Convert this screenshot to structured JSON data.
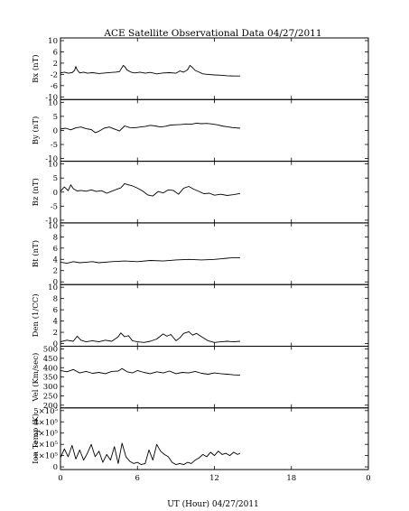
{
  "chart_data": {
    "type": "line",
    "title": "ACE Satellite Observational Data   04/27/2011",
    "xlabel": "UT (Hour)   04/27/2011",
    "xlim": [
      0,
      24
    ],
    "x_ticks": [
      "0",
      "6",
      "12",
      "18",
      "0"
    ],
    "grid": false,
    "data_end_hour": 14,
    "panels": [
      {
        "id": "bx",
        "ylabel": "Bx (nT)",
        "ylim": [
          -10,
          10
        ],
        "y_ticks": [
          "10",
          "6",
          "2",
          "-2",
          "-6",
          "-10"
        ],
        "y_tick_values": [
          10,
          6,
          2,
          -2,
          -6,
          -10
        ],
        "series": [
          {
            "x": [
              0.0,
              0.3,
              0.6,
              0.9,
              1.1,
              1.2,
              1.3,
              1.5,
              1.8,
              2.1,
              2.5,
              3.0,
              3.5,
              4.0,
              4.3,
              4.6,
              4.8,
              4.9,
              5.0,
              5.2,
              5.5,
              5.8,
              6.2,
              6.6,
              7.0,
              7.5,
              8.0,
              8.5,
              9.0,
              9.3,
              9.6,
              9.9,
              10.1,
              10.3,
              10.5,
              10.8,
              11.1,
              11.5,
              12.0,
              12.5,
              13.0,
              13.5,
              14.0
            ],
            "y": [
              -1.5,
              -1.2,
              -1.6,
              -1.4,
              -0.6,
              0.8,
              -0.4,
              -1.5,
              -1.2,
              -1.6,
              -1.4,
              -1.7,
              -1.5,
              -1.3,
              -1.2,
              -1.0,
              0.5,
              1.2,
              0.8,
              -0.5,
              -1.2,
              -1.5,
              -1.2,
              -1.6,
              -1.3,
              -1.8,
              -1.5,
              -1.4,
              -1.6,
              -0.8,
              -1.2,
              -0.4,
              1.2,
              0.4,
              -0.6,
              -1.2,
              -1.8,
              -2.0,
              -2.2,
              -2.3,
              -2.5,
              -2.6,
              -2.6
            ]
          }
        ]
      },
      {
        "id": "by",
        "ylabel": "By (nT)",
        "ylim": [
          -10,
          10
        ],
        "y_ticks": [
          "10",
          "5",
          "0",
          "-5",
          "-10"
        ],
        "y_tick_values": [
          10,
          5,
          0,
          -5,
          -10
        ],
        "series": [
          {
            "x": [
              0.0,
              0.4,
              0.8,
              1.2,
              1.6,
              2.0,
              2.4,
              2.7,
              3.0,
              3.4,
              3.8,
              4.2,
              4.6,
              5.0,
              5.4,
              5.8,
              6.2,
              6.6,
              7.0,
              7.4,
              7.8,
              8.2,
              8.6,
              9.0,
              9.4,
              9.8,
              10.2,
              10.6,
              11.0,
              11.4,
              11.8,
              12.2,
              12.6,
              13.0,
              13.4,
              14.0
            ],
            "y": [
              0.5,
              0.8,
              0.2,
              0.9,
              1.2,
              0.6,
              0.3,
              -0.8,
              -0.3,
              0.8,
              1.2,
              0.5,
              -0.2,
              1.6,
              1.0,
              0.9,
              1.2,
              1.4,
              1.8,
              1.6,
              1.2,
              1.5,
              1.9,
              2.0,
              2.1,
              2.3,
              2.2,
              2.6,
              2.4,
              2.5,
              2.3,
              2.0,
              1.6,
              1.3,
              1.0,
              0.8
            ]
          }
        ]
      },
      {
        "id": "bz",
        "ylabel": "Bz (nT)",
        "ylim": [
          -10,
          10
        ],
        "y_ticks": [
          "10",
          "5",
          "0",
          "-5",
          "-10"
        ],
        "y_tick_values": [
          10,
          5,
          0,
          -5,
          -10
        ],
        "series": [
          {
            "x": [
              0.0,
              0.3,
              0.6,
              0.8,
              1.0,
              1.3,
              1.6,
              2.0,
              2.4,
              2.8,
              3.2,
              3.6,
              4.0,
              4.4,
              4.7,
              5.0,
              5.3,
              5.6,
              6.0,
              6.4,
              6.8,
              7.2,
              7.6,
              8.0,
              8.4,
              8.8,
              9.2,
              9.6,
              10.0,
              10.4,
              10.8,
              11.2,
              11.6,
              12.0,
              12.5,
              13.0,
              13.5,
              14.0
            ],
            "y": [
              0.3,
              1.8,
              0.5,
              2.6,
              1.2,
              0.4,
              0.6,
              0.3,
              0.8,
              0.2,
              0.5,
              -0.4,
              0.3,
              1.0,
              1.5,
              3.0,
              2.6,
              2.2,
              1.4,
              0.4,
              -1.0,
              -1.4,
              0.2,
              -0.3,
              0.8,
              0.6,
              -0.8,
              1.4,
              2.0,
              1.0,
              0.2,
              -0.6,
              -0.4,
              -1.1,
              -0.8,
              -1.2,
              -0.9,
              -0.5
            ]
          }
        ]
      },
      {
        "id": "bt",
        "ylabel": "Bt (nT)",
        "ylim": [
          0,
          10
        ],
        "y_ticks": [
          "10",
          "8",
          "6",
          "4",
          "2",
          "0"
        ],
        "y_tick_values": [
          10,
          8,
          6,
          4,
          2,
          0
        ],
        "series": [
          {
            "x": [
              0.0,
              0.5,
              1.0,
              1.5,
              2.0,
              2.5,
              3.0,
              4.0,
              5.0,
              6.0,
              7.0,
              8.0,
              9.0,
              10.0,
              11.0,
              12.0,
              12.5,
              13.0,
              13.5,
              14.0
            ],
            "y": [
              3.5,
              3.3,
              3.6,
              3.4,
              3.5,
              3.6,
              3.4,
              3.6,
              3.7,
              3.6,
              3.8,
              3.7,
              3.9,
              4.0,
              3.9,
              4.0,
              4.1,
              4.2,
              4.3,
              4.3
            ]
          }
        ]
      },
      {
        "id": "den",
        "ylabel": "Den (1/CC)",
        "ylim": [
          0,
          10
        ],
        "y_ticks": [
          "10",
          "8",
          "6",
          "4",
          "2",
          "0"
        ],
        "y_tick_values": [
          10,
          8,
          6,
          4,
          2,
          0
        ],
        "series": [
          {
            "x": [
              0.0,
              0.5,
              1.0,
              1.3,
              1.6,
              2.0,
              2.5,
              3.0,
              3.5,
              4.0,
              4.5,
              4.7,
              5.0,
              5.3,
              5.6,
              6.0,
              6.5,
              7.0,
              7.5,
              8.0,
              8.3,
              8.6,
              9.0,
              9.3,
              9.6,
              10.0,
              10.3,
              10.6,
              11.0,
              11.5,
              12.0,
              12.5,
              13.0,
              13.5,
              14.0
            ],
            "y": [
              0.3,
              0.6,
              0.4,
              1.3,
              0.6,
              0.3,
              0.5,
              0.3,
              0.6,
              0.4,
              1.2,
              1.9,
              1.2,
              1.4,
              0.5,
              0.3,
              0.2,
              0.4,
              0.8,
              1.7,
              1.3,
              1.6,
              0.5,
              1.0,
              1.8,
              2.1,
              1.5,
              1.8,
              1.2,
              0.5,
              0.2,
              0.3,
              0.4,
              0.3,
              0.4
            ]
          }
        ]
      },
      {
        "id": "vel",
        "ylabel": "Vel (Km/sec)",
        "ylim": [
          200,
          500
        ],
        "y_ticks": [
          "500",
          "450",
          "400",
          "350",
          "300",
          "250",
          "200"
        ],
        "y_tick_values": [
          500,
          450,
          400,
          350,
          300,
          250,
          200
        ],
        "series": [
          {
            "x": [
              0.0,
              0.5,
              1.0,
              1.5,
              2.0,
              2.5,
              3.0,
              3.5,
              4.0,
              4.5,
              4.8,
              5.2,
              5.6,
              6.0,
              6.5,
              7.0,
              7.5,
              8.0,
              8.5,
              9.0,
              9.5,
              10.0,
              10.5,
              11.0,
              11.5,
              12.0,
              12.5,
              13.0,
              13.5,
              14.0
            ],
            "y": [
              385,
              378,
              390,
              372,
              380,
              370,
              375,
              368,
              380,
              382,
              395,
              378,
              372,
              385,
              375,
              368,
              378,
              372,
              382,
              368,
              375,
              372,
              380,
              370,
              365,
              372,
              368,
              365,
              362,
              360
            ]
          }
        ]
      },
      {
        "id": "temp",
        "ylabel": "Ion Temp (K)",
        "ylim": [
          0,
          500000
        ],
        "y_ticks": [
          "5×10⁵",
          "4×10⁵",
          "3×10⁵",
          "2×10⁵",
          "1×10⁵",
          "0"
        ],
        "y_tick_values": [
          500000,
          400000,
          300000,
          200000,
          100000,
          0
        ],
        "series": [
          {
            "x": [
              0.0,
              0.3,
              0.6,
              0.9,
              1.2,
              1.5,
              1.8,
              2.1,
              2.4,
              2.7,
              3.0,
              3.3,
              3.6,
              3.9,
              4.2,
              4.5,
              4.8,
              5.1,
              5.4,
              5.7,
              6.0,
              6.3,
              6.6,
              6.9,
              7.2,
              7.5,
              7.8,
              8.1,
              8.4,
              8.7,
              9.0,
              9.3,
              9.6,
              9.9,
              10.2,
              10.5,
              10.8,
              11.1,
              11.4,
              11.7,
              12.0,
              12.3,
              12.6,
              12.9,
              13.2,
              13.5,
              13.8,
              14.0
            ],
            "y": [
              80000,
              160000,
              90000,
              190000,
              70000,
              150000,
              60000,
              120000,
              200000,
              90000,
              140000,
              40000,
              110000,
              60000,
              180000,
              30000,
              210000,
              90000,
              50000,
              30000,
              40000,
              20000,
              30000,
              150000,
              60000,
              200000,
              140000,
              110000,
              90000,
              40000,
              20000,
              30000,
              20000,
              40000,
              30000,
              60000,
              80000,
              110000,
              90000,
              130000,
              100000,
              140000,
              110000,
              120000,
              100000,
              130000,
              110000,
              120000
            ]
          }
        ]
      }
    ]
  }
}
